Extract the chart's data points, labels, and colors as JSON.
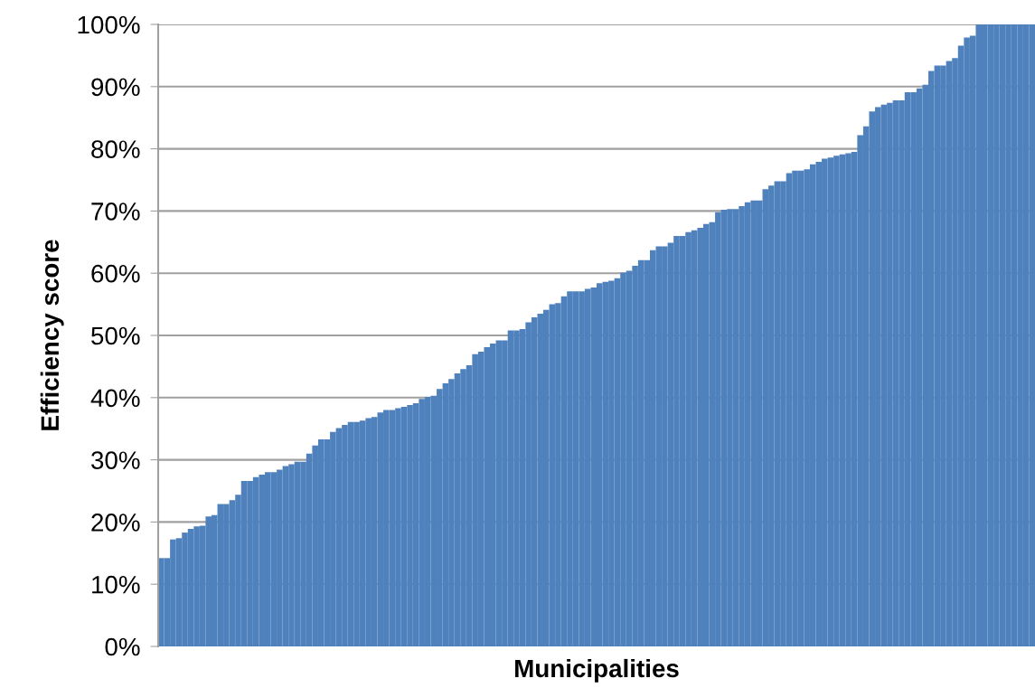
{
  "chart_data": {
    "type": "bar",
    "xlabel": "Municipalities",
    "ylabel": "Efficiency score",
    "color": "#4f81bd",
    "categories": [
      null,
      null,
      null,
      null,
      null,
      null,
      null,
      null,
      null,
      null,
      null,
      null,
      null,
      null,
      null,
      null,
      null,
      null,
      null,
      null,
      null,
      null,
      null,
      null,
      null,
      null,
      null,
      null,
      null,
      null,
      null,
      null,
      null,
      null,
      null,
      null,
      null,
      null,
      null,
      null,
      null,
      null,
      null,
      null,
      null,
      null,
      null,
      null,
      null,
      null,
      null,
      null,
      null,
      null,
      null,
      null,
      null,
      null,
      null,
      null,
      null,
      null,
      null,
      null,
      null,
      null,
      null,
      null,
      null,
      null,
      null,
      null,
      null,
      null,
      null,
      null,
      null,
      null,
      null,
      null,
      null,
      null,
      null,
      null,
      null,
      null,
      null,
      null,
      null,
      null,
      null,
      null,
      null,
      null,
      null,
      null,
      null,
      null,
      null,
      null,
      null,
      null,
      null,
      null,
      null,
      null,
      null,
      null,
      null,
      null,
      null,
      null,
      null,
      null,
      null,
      null,
      null,
      null,
      null,
      null,
      null,
      null,
      null,
      null,
      null,
      null,
      null,
      null,
      null,
      null,
      null,
      null,
      null,
      null,
      null,
      null,
      null,
      null,
      null,
      null,
      null,
      null,
      null,
      null,
      null,
      null,
      null,
      null
    ],
    "values": [
      14.2,
      14.2,
      17.2,
      17.4,
      18.3,
      18.9,
      19.3,
      19.4,
      20.9,
      21.1,
      22.9,
      22.9,
      23.5,
      24.4,
      26.6,
      26.6,
      27.2,
      27.6,
      28.0,
      28.0,
      28.4,
      29.0,
      29.3,
      29.7,
      29.7,
      31.0,
      32.3,
      33.3,
      33.3,
      34.5,
      35.1,
      35.6,
      36.1,
      36.1,
      36.3,
      36.7,
      36.9,
      37.6,
      38.0,
      38.0,
      38.3,
      38.5,
      38.8,
      39.1,
      39.8,
      40.1,
      40.3,
      41.4,
      42.3,
      43.0,
      43.9,
      44.6,
      45.2,
      47.0,
      47.4,
      48.1,
      48.7,
      49.2,
      49.2,
      50.8,
      50.8,
      51.0,
      52.1,
      52.9,
      53.5,
      54.1,
      55.0,
      55.2,
      56.3,
      57.1,
      57.1,
      57.1,
      57.5,
      57.7,
      58.4,
      58.6,
      58.8,
      59.2,
      60.1,
      60.4,
      61.2,
      62.1,
      62.1,
      63.7,
      64.3,
      64.3,
      64.9,
      66.0,
      66.0,
      66.6,
      66.9,
      67.3,
      67.9,
      68.2,
      69.8,
      70.2,
      70.3,
      70.3,
      70.8,
      71.4,
      71.7,
      71.7,
      73.5,
      74.1,
      74.8,
      74.8,
      76.1,
      76.5,
      76.5,
      76.7,
      77.5,
      77.9,
      78.4,
      78.6,
      78.9,
      79.1,
      79.3,
      79.5,
      82.2,
      83.6,
      86.0,
      86.7,
      87.1,
      87.4,
      87.8,
      87.8,
      89.1,
      89.1,
      89.7,
      90.3,
      92.5,
      93.4,
      93.4,
      94.1,
      94.6,
      96.6,
      97.9,
      98.2,
      100,
      100,
      100,
      100,
      100,
      100,
      100,
      100,
      100,
      100
    ],
    "ylim": [
      0,
      100
    ],
    "yticks": [
      {
        "value": 0,
        "label": "0%"
      },
      {
        "value": 10,
        "label": "10%"
      },
      {
        "value": 20,
        "label": "20%"
      },
      {
        "value": 30,
        "label": "30%"
      },
      {
        "value": 40,
        "label": "40%"
      },
      {
        "value": 50,
        "label": "50%"
      },
      {
        "value": 60,
        "label": "60%"
      },
      {
        "value": 70,
        "label": "70%"
      },
      {
        "value": 80,
        "label": "80%"
      },
      {
        "value": 90,
        "label": "90%"
      },
      {
        "value": 100,
        "label": "100%"
      }
    ],
    "grid": "y",
    "tick_labels": "y"
  }
}
